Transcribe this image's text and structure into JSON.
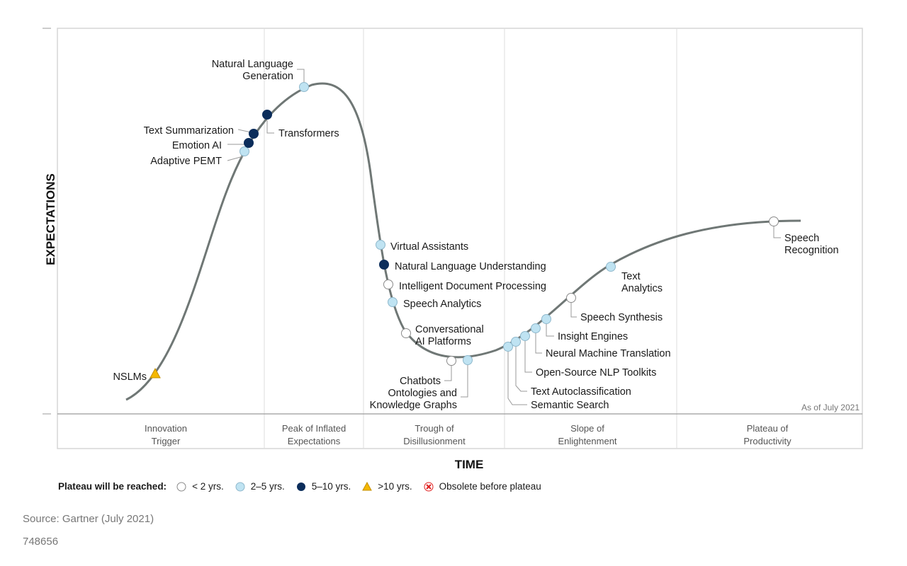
{
  "chart_data": {
    "type": "line",
    "title": "",
    "xlabel": "TIME",
    "ylabel": "EXPECTATIONS",
    "as_of": "As of July 2021",
    "phases": [
      {
        "line1": "Innovation",
        "line2": "Trigger"
      },
      {
        "line1": "Peak of Inflated",
        "line2": "Expectations"
      },
      {
        "line1": "Trough of",
        "line2": "Disillusionment"
      },
      {
        "line1": "Slope of",
        "line2": "Enlightenment"
      },
      {
        "line1": "Plateau of",
        "line2": "Productivity"
      }
    ],
    "legend": {
      "title": "Plateau will be reached:",
      "items": [
        {
          "key": "lt2",
          "label": "< 2 yrs."
        },
        {
          "key": "2to5",
          "label": "2–5 yrs."
        },
        {
          "key": "5to10",
          "label": "5–10 yrs."
        },
        {
          "key": "gt10",
          "label": ">10 yrs."
        },
        {
          "key": "obsolete",
          "label": "Obsolete before plateau"
        }
      ]
    },
    "colors": {
      "lt2": "#ffffff",
      "2to5": "#bfe3f2",
      "5to10": "#0b2d5b",
      "gt10": "#f5b800",
      "obsolete": "#e02020",
      "curve": "#6f7775"
    },
    "technologies": [
      {
        "name": "NSLMs",
        "lines": [
          "NSLMs"
        ],
        "category": "gt10"
      },
      {
        "name": "Adaptive PEMT",
        "lines": [
          "Adaptive PEMT"
        ],
        "category": "2to5"
      },
      {
        "name": "Emotion AI",
        "lines": [
          "Emotion AI"
        ],
        "category": "5to10"
      },
      {
        "name": "Text Summarization",
        "lines": [
          "Text Summarization"
        ],
        "category": "5to10"
      },
      {
        "name": "Transformers",
        "lines": [
          "Transformers"
        ],
        "category": "5to10"
      },
      {
        "name": "Natural Language Generation",
        "lines": [
          "Natural Language",
          "Generation"
        ],
        "category": "2to5"
      },
      {
        "name": "Virtual Assistants",
        "lines": [
          "Virtual Assistants"
        ],
        "category": "2to5"
      },
      {
        "name": "Natural Language Understanding",
        "lines": [
          "Natural Language Understanding"
        ],
        "category": "5to10"
      },
      {
        "name": "Intelligent Document Processing",
        "lines": [
          "Intelligent Document Processing"
        ],
        "category": "lt2"
      },
      {
        "name": "Speech Analytics",
        "lines": [
          "Speech Analytics"
        ],
        "category": "2to5"
      },
      {
        "name": "Conversational AI Platforms",
        "lines": [
          "Conversational",
          "AI Platforms"
        ],
        "category": "lt2"
      },
      {
        "name": "Chatbots",
        "lines": [
          "Chatbots"
        ],
        "category": "lt2"
      },
      {
        "name": "Ontologies and Knowledge Graphs",
        "lines": [
          "Ontologies and",
          "Knowledge Graphs"
        ],
        "category": "2to5"
      },
      {
        "name": "Semantic Search",
        "lines": [
          "Semantic Search"
        ],
        "category": "2to5"
      },
      {
        "name": "Text Autoclassification",
        "lines": [
          "Text Autoclassification"
        ],
        "category": "2to5"
      },
      {
        "name": "Open-Source NLP Toolkits",
        "lines": [
          "Open-Source NLP Toolkits"
        ],
        "category": "2to5"
      },
      {
        "name": "Neural Machine Translation",
        "lines": [
          "Neural Machine Translation"
        ],
        "category": "2to5"
      },
      {
        "name": "Insight Engines",
        "lines": [
          "Insight Engines"
        ],
        "category": "2to5"
      },
      {
        "name": "Speech Synthesis",
        "lines": [
          "Speech Synthesis"
        ],
        "category": "lt2"
      },
      {
        "name": "Text Analytics",
        "lines": [
          "Text",
          "Analytics"
        ],
        "category": "2to5"
      },
      {
        "name": "Speech Recognition",
        "lines": [
          "Speech",
          "Recognition"
        ],
        "category": "lt2"
      }
    ]
  },
  "footer": {
    "source": "Source: Gartner (July 2021)",
    "doc_id": "748656"
  }
}
